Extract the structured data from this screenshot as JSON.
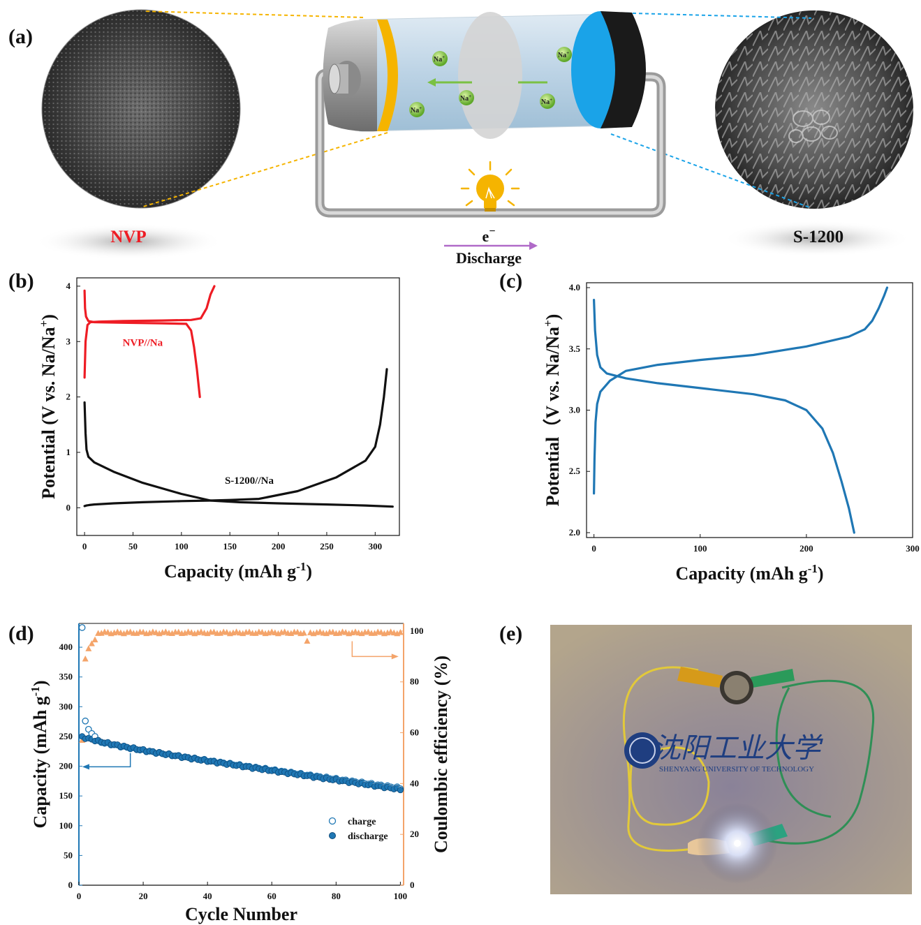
{
  "panel_labels": {
    "a": "(a)",
    "b": "(b)",
    "c": "(c)",
    "d": "(d)",
    "e": "(e)"
  },
  "panel_a": {
    "left_label": "NVP",
    "right_label": "S-1200",
    "ion_label": "Na",
    "ion_sup": "+",
    "electron_label": "e",
    "electron_sup": "−",
    "discharge_label": "Discharge"
  },
  "panel_e": {
    "logo_chinese": "沈阳工业大学",
    "logo_english": "SHENYANG UNIVERSITY OF TECHNOLOGY"
  },
  "colors": {
    "nvp_curve": "#ee1c24",
    "s1200_curve": "#111111",
    "full_cell_curve": "#1f77b4",
    "capacity_axis": "#1f77b4",
    "efficiency_axis": "#f4a46a",
    "anode_cap": "#1aa3e8",
    "cathode_cap": "#f5b400"
  },
  "chart_data": [
    {
      "panel": "b",
      "type": "line",
      "xlabel": "Capacity (mAh g",
      "xlabel_sup": "-1",
      "xlabel_end": ")",
      "ylabel": "Potential (V vs. Na/Na",
      "ylabel_sup": "+",
      "ylabel_end": ")",
      "xlim": [
        -8,
        325
      ],
      "ylim": [
        -0.5,
        4.15
      ],
      "xticks": [
        0,
        50,
        100,
        150,
        200,
        250,
        300
      ],
      "yticks": [
        0,
        1,
        2,
        3,
        4
      ],
      "annotations": [
        "NVP//Na",
        "S-1200//Na"
      ],
      "series": [
        {
          "name": "NVP//Na",
          "color": "#ee1c24",
          "x": [
            0,
            1,
            3,
            6,
            15,
            40,
            80,
            110,
            120,
            126,
            130,
            134
          ],
          "y": [
            2.35,
            3.0,
            3.3,
            3.35,
            3.36,
            3.37,
            3.38,
            3.39,
            3.42,
            3.6,
            3.85,
            4.0
          ]
        },
        {
          "name": "NVP//Na",
          "color": "#ee1c24",
          "x": [
            0,
            0.5,
            1.5,
            4,
            10,
            40,
            80,
            105,
            110,
            113,
            116,
            119
          ],
          "y": [
            3.92,
            3.6,
            3.45,
            3.37,
            3.35,
            3.34,
            3.33,
            3.32,
            3.2,
            2.9,
            2.5,
            2.0
          ]
        },
        {
          "name": "S-1200//Na",
          "color": "#111111",
          "x": [
            0,
            2,
            5,
            10,
            30,
            60,
            100,
            130,
            150,
            180,
            220,
            260,
            290,
            300,
            305,
            309,
            312
          ],
          "y": [
            0.03,
            0.04,
            0.05,
            0.06,
            0.08,
            0.1,
            0.12,
            0.13,
            0.14,
            0.16,
            0.3,
            0.55,
            0.85,
            1.1,
            1.5,
            2.0,
            2.5
          ]
        },
        {
          "name": "S-1200//Na",
          "color": "#111111",
          "x": [
            0,
            1,
            2,
            4,
            10,
            30,
            60,
            100,
            130,
            160,
            200,
            250,
            290,
            318
          ],
          "y": [
            1.9,
            1.35,
            1.05,
            0.92,
            0.82,
            0.65,
            0.45,
            0.25,
            0.13,
            0.1,
            0.08,
            0.06,
            0.04,
            0.02
          ]
        }
      ]
    },
    {
      "panel": "c",
      "type": "line",
      "xlabel": "Capacity (mAh g",
      "xlabel_sup": "-1",
      "xlabel_end": ")",
      "ylabel": "Potential（V vs. Na/Na",
      "ylabel_sup": "+",
      "ylabel_end": ")",
      "xlim": [
        -7,
        300
      ],
      "ylim": [
        1.96,
        4.04
      ],
      "xticks": [
        0,
        100,
        200,
        300
      ],
      "yticks": [
        2.0,
        2.5,
        3.0,
        3.5,
        4.0
      ],
      "series": [
        {
          "name": "",
          "color": "#1f77b4",
          "x": [
            0,
            0.5,
            1.5,
            3,
            6,
            15,
            30,
            60,
            100,
            150,
            200,
            240,
            255,
            262,
            268,
            273,
            276
          ],
          "y": [
            2.32,
            2.6,
            2.9,
            3.05,
            3.15,
            3.24,
            3.32,
            3.37,
            3.41,
            3.45,
            3.52,
            3.6,
            3.66,
            3.73,
            3.83,
            3.93,
            4.0
          ]
        },
        {
          "name": "",
          "color": "#1f77b4",
          "x": [
            0,
            1,
            3,
            6,
            12,
            30,
            60,
            100,
            150,
            180,
            200,
            215,
            225,
            233,
            240,
            245
          ],
          "y": [
            3.9,
            3.65,
            3.45,
            3.35,
            3.3,
            3.26,
            3.22,
            3.18,
            3.13,
            3.08,
            3.0,
            2.85,
            2.65,
            2.42,
            2.2,
            2.0
          ]
        }
      ]
    },
    {
      "panel": "d",
      "type": "scatter",
      "xlabel": "Cycle Number",
      "ylabel": "Capacity (mAh g",
      "ylabel_sup": "-1",
      "ylabel_end": ")",
      "y2label": "Coulombic efficiency (%)",
      "xlim": [
        0,
        101
      ],
      "ylim": [
        0,
        440
      ],
      "y2lim": [
        0,
        103
      ],
      "xticks": [
        0,
        20,
        40,
        60,
        80,
        100
      ],
      "yticks": [
        0,
        50,
        100,
        150,
        200,
        250,
        300,
        350,
        400
      ],
      "y2ticks": [
        0,
        20,
        40,
        60,
        80,
        100
      ],
      "legend": [
        "charge",
        "discharge"
      ],
      "legend_position": "lower-right",
      "charge_first": [
        [
          1,
          433
        ],
        [
          2,
          276
        ],
        [
          3,
          262
        ],
        [
          4,
          255
        ],
        [
          5,
          250
        ]
      ],
      "charge_start": 248,
      "charge_end": 163,
      "discharge_start": 250,
      "discharge_end": 162,
      "efficiency_first": [
        [
          1,
          57
        ],
        [
          2,
          89
        ],
        [
          3,
          93
        ],
        [
          4,
          95
        ],
        [
          5,
          96.5
        ]
      ],
      "efficiency_plateau": 99.3,
      "efficiency_dips": [
        [
          71,
          96
        ]
      ]
    }
  ]
}
